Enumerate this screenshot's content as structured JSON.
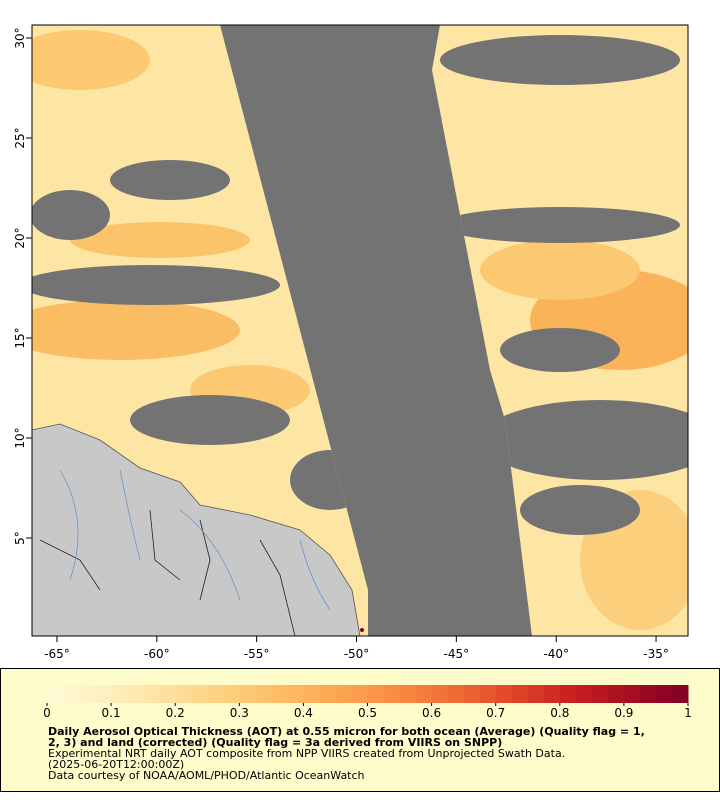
{
  "chart_data": {
    "type": "map",
    "xlim": [
      -66.25,
      -33.4
    ],
    "ylim": [
      0.1,
      30.65
    ],
    "xticks": [
      {
        "value": -65,
        "label": "-65°"
      },
      {
        "value": -60,
        "label": "-60°"
      },
      {
        "value": -55,
        "label": "-55°"
      },
      {
        "value": -50,
        "label": "-50°"
      },
      {
        "value": -45,
        "label": "-45°"
      },
      {
        "value": -40,
        "label": "-40°"
      },
      {
        "value": -35,
        "label": "-35°"
      }
    ],
    "yticks": [
      {
        "value": 5,
        "label": "5°"
      },
      {
        "value": 10,
        "label": "10°"
      },
      {
        "value": 15,
        "label": "15°"
      },
      {
        "value": 20,
        "label": "20°"
      },
      {
        "value": 25,
        "label": "25°"
      },
      {
        "value": 30,
        "label": "30°"
      }
    ],
    "colorbar": {
      "lim": [
        0,
        1
      ],
      "ticks": [
        0,
        0.1,
        0.2,
        0.3,
        0.4,
        0.5,
        0.6,
        0.7,
        0.8,
        0.9,
        1
      ],
      "colors": [
        "#fffbd9",
        "#fef0bf",
        "#fee2a0",
        "#fdd17f",
        "#fcbd64",
        "#fba650",
        "#f98b42",
        "#f06b34",
        "#e04528",
        "#c8201f",
        "#a50d22",
        "#7f0023"
      ]
    },
    "title_lines": [
      "Daily Aerosol Optical Thickness (AOT) at 0.55 micron for both ocean (Average) (Quality flag = 1,",
      "2, 3) and land (corrected) (Quality flag = 3a derived from VIIRS on SNPP)"
    ],
    "notes": [
      "Experimental NRT daily AOT composite from NPP VIIRS created from Unprojected Swath Data.",
      "(2025-06-20T12:00:00Z)",
      "Data courtesy of NOAA/AOML/PHOD/Atlantic OceanWatch"
    ]
  }
}
